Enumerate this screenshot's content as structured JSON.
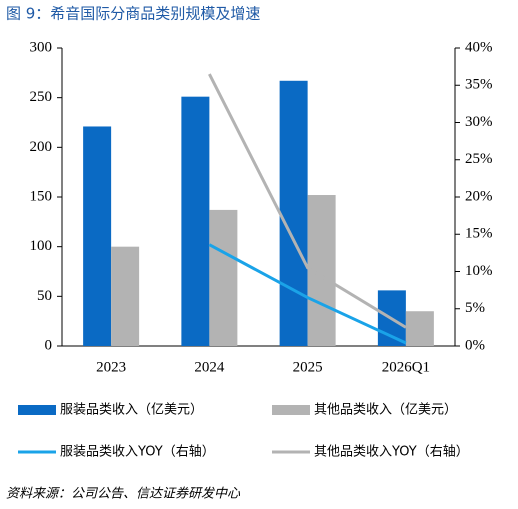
{
  "chart_data": {
    "type": "bar",
    "title": "图 9：希音国际分商品类别规模及增速",
    "source": "资料来源：公司公告、信达证券研发中心",
    "categories": [
      "2023",
      "2024",
      "2025",
      "2026Q1"
    ],
    "series": [
      {
        "name": "服装品类收入（亿美元）",
        "type": "bar",
        "color": "#0a6ac4",
        "values": [
          221,
          251,
          267,
          56
        ]
      },
      {
        "name": "其他品类收入（亿美元）",
        "type": "bar",
        "color": "#b3b3b3",
        "values": [
          100,
          137,
          152,
          35
        ]
      },
      {
        "name": "服装品类收入YOY（右轴）",
        "type": "line",
        "axis": "y2",
        "color": "#1aa3e8",
        "values": [
          null,
          13.6,
          6.5,
          0.4
        ]
      },
      {
        "name": "其他品类收入YOY（右轴）",
        "type": "line",
        "axis": "y2",
        "color": "#b3b3b3",
        "values": [
          null,
          36.5,
          10.5,
          2.5
        ]
      }
    ],
    "ylim": [
      0,
      300
    ],
    "yticks": [
      0,
      50,
      100,
      150,
      200,
      250,
      300
    ],
    "y2lim": [
      0,
      40
    ],
    "y2ticks": [
      {
        "value": 0,
        "label": "0%"
      },
      {
        "value": 5,
        "label": "5%"
      },
      {
        "value": 10,
        "label": "10%"
      },
      {
        "value": 15,
        "label": "15%"
      },
      {
        "value": 20,
        "label": "20%"
      },
      {
        "value": 25,
        "label": "25%"
      },
      {
        "value": 30,
        "label": "30%"
      },
      {
        "value": 35,
        "label": "35%"
      },
      {
        "value": 40,
        "label": "40%"
      }
    ],
    "legend": "bottom"
  }
}
